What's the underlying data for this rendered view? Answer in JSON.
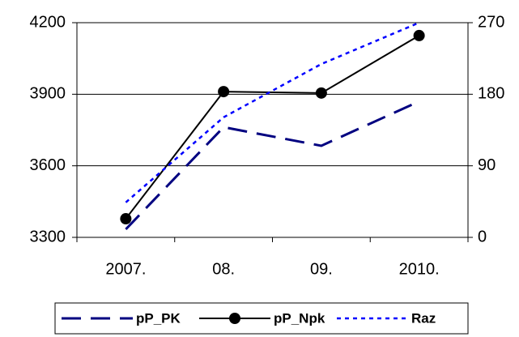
{
  "chart_data": {
    "type": "line",
    "categories": [
      "2007.",
      "08.",
      "09.",
      "2010."
    ],
    "series": [
      {
        "name": "pP_PK",
        "color": "#000080",
        "dash": "dashed",
        "values": [
          3334,
          3762,
          3684,
          3870
        ]
      },
      {
        "name": "pP_Npk",
        "color": "#000000",
        "dash": "solid",
        "marker": "circle",
        "values": [
          3378,
          3911,
          3905,
          4146
        ]
      },
      {
        "name": "Raz",
        "color": "#0000ff",
        "dash": "dotted",
        "axis": "y2",
        "values": [
          44,
          151,
          218,
          270
        ]
      }
    ],
    "ylim": [
      3300,
      4200
    ],
    "yticks": [
      3300,
      3600,
      3900,
      4200
    ],
    "y2lim": [
      0,
      270
    ],
    "y2ticks": [
      0,
      90,
      180,
      270
    ],
    "grid": true,
    "legend": "bottom"
  }
}
